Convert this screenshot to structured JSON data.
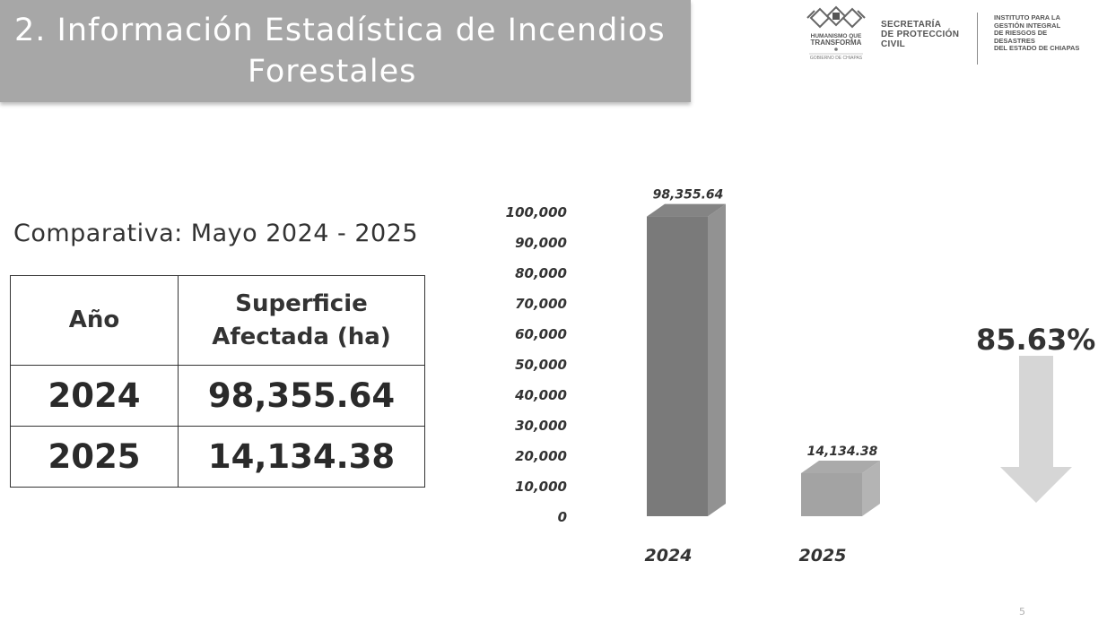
{
  "header": {
    "title_line1": "2. Información Estadística de Incendios",
    "title_line2": "Forestales"
  },
  "logos": {
    "emblem": {
      "line1": "HUMANISMO QUE",
      "line2": "TRANSFORMA",
      "line3": "GOBIERNO DE CHIAPAS"
    },
    "secretaria": [
      "SECRETARÍA",
      "DE PROTECCIÓN",
      "CIVIL"
    ],
    "instituto": [
      "INSTITUTO PARA LA",
      "GESTIÓN INTEGRAL",
      "DE RIESGOS DE DESASTRES",
      "DEL ESTADO DE CHIAPAS"
    ]
  },
  "subtitle": "Comparativa: Mayo 2024 - 2025",
  "table": {
    "headers": [
      "Año",
      "Superficie",
      "Afectada (ha)"
    ],
    "rows": [
      [
        "2024",
        "98,355.64"
      ],
      [
        "2025",
        "14,134.38"
      ]
    ]
  },
  "chart_data": {
    "type": "bar",
    "categories": [
      "2024",
      "2025"
    ],
    "values": [
      98355.64,
      14134.38
    ],
    "data_labels": [
      "98,355.64",
      "14,134.38"
    ],
    "ylim": [
      0,
      100000
    ],
    "yticks": [
      0,
      10000,
      20000,
      30000,
      40000,
      50000,
      60000,
      70000,
      80000,
      90000,
      100000
    ],
    "ytick_labels": [
      "0",
      "10,000",
      "20,000",
      "30,000",
      "40,000",
      "50,000",
      "60,000",
      "70,000",
      "80,000",
      "90,000",
      "100,000"
    ],
    "title": "",
    "xlabel": "",
    "ylabel": "",
    "grid": false,
    "bar_colors": [
      "#7a7a7a",
      "#a3a3a3"
    ]
  },
  "reduction": {
    "percent_label": "85.63%",
    "direction": "down",
    "arrow_color": "#d6d6d6"
  },
  "page_number": "5"
}
